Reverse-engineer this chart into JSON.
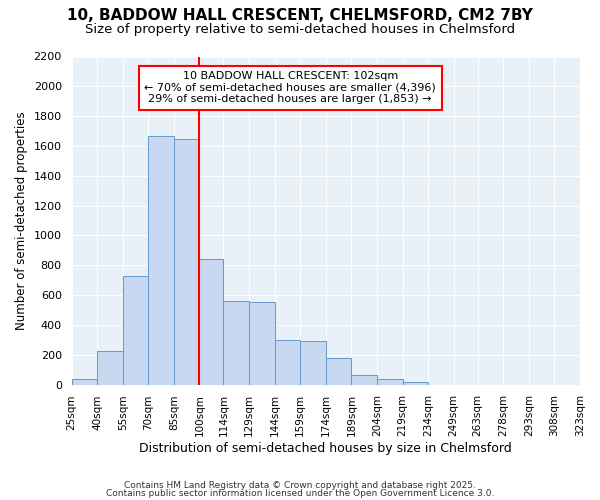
{
  "title1": "10, BADDOW HALL CRESCENT, CHELMSFORD, CM2 7BY",
  "title2": "Size of property relative to semi-detached houses in Chelmsford",
  "xlabel": "Distribution of semi-detached houses by size in Chelmsford",
  "ylabel": "Number of semi-detached properties",
  "bar_color": "#c8d8f0",
  "bar_edge_color": "#6699cc",
  "bg_color": "#ffffff",
  "plot_bg_color": "#e8f0f8",
  "grid_color": "#ffffff",
  "redline_x": 100,
  "annotation_title": "10 BADDOW HALL CRESCENT: 102sqm",
  "annotation_line1": "← 70% of semi-detached houses are smaller (4,396)",
  "annotation_line2": "29% of semi-detached houses are larger (1,853) →",
  "footnote1": "Contains HM Land Registry data © Crown copyright and database right 2025.",
  "footnote2": "Contains public sector information licensed under the Open Government Licence 3.0.",
  "bins": [
    25,
    40,
    55,
    70,
    85,
    100,
    114,
    129,
    144,
    159,
    174,
    189,
    204,
    219,
    234,
    249,
    263,
    278,
    293,
    308,
    323
  ],
  "counts": [
    40,
    225,
    725,
    1665,
    1650,
    840,
    560,
    555,
    300,
    295,
    180,
    65,
    35,
    20,
    0,
    0,
    0,
    0,
    0,
    0
  ],
  "ylim": [
    0,
    2200
  ],
  "yticks": [
    0,
    200,
    400,
    600,
    800,
    1000,
    1200,
    1400,
    1600,
    1800,
    2000,
    2200
  ]
}
